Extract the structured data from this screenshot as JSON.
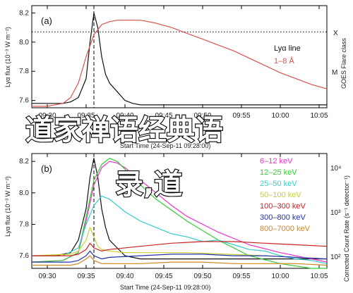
{
  "overlay": {
    "line1": "道家禅语经典语",
    "line2": "录,道"
  },
  "colors": {
    "lya": "#111111",
    "goes": "#d9534f",
    "dashed": "#000000"
  },
  "chart_data": [
    {
      "type": "line",
      "panel_label": "(a)",
      "xlabel": "Start Time (24-Sep-11 09:28:00)",
      "ylabel": "Lyα flux (10⁻³ W m⁻²)",
      "right_ylabel": "GOES Flare class",
      "x_ticks": [
        "09:30",
        "09:35",
        "09:40",
        "09:45",
        "09:50",
        "09:55",
        "10:00",
        "10:05"
      ],
      "x_range": [
        "09:28",
        "10:06"
      ],
      "ylim": [
        7.55,
        8.25
      ],
      "y_ticks": [
        7.6,
        7.8,
        8.0,
        8.2
      ],
      "right_ticks": [
        "X",
        "M"
      ],
      "dashed_vline": "09:36",
      "dotted_hline": 8.07,
      "legend": [
        "Lyα line",
        "1–8 Å"
      ],
      "series": [
        {
          "name": "Lyα line",
          "color": "#111111",
          "x": [
            0,
            2,
            4,
            5,
            6,
            7,
            7.5,
            8,
            8.5,
            9,
            9.5,
            10,
            11,
            12,
            13,
            14,
            16,
            20,
            25,
            30,
            38
          ],
          "y": [
            7.58,
            7.58,
            7.58,
            7.59,
            7.62,
            7.75,
            8.0,
            8.2,
            8.1,
            7.9,
            7.78,
            7.72,
            7.66,
            7.6,
            7.58,
            7.57,
            7.57,
            7.57,
            7.57,
            7.57,
            7.57
          ]
        },
        {
          "name": "1–8 Å",
          "color": "#d9534f",
          "x": [
            0,
            2,
            4,
            5,
            6,
            7,
            8,
            9,
            10,
            11,
            12,
            14,
            16,
            18,
            20,
            22,
            24,
            26,
            28,
            30,
            32,
            34,
            36,
            38
          ],
          "y": [
            7.56,
            7.56,
            7.58,
            7.62,
            7.72,
            7.9,
            8.05,
            8.12,
            8.14,
            8.15,
            8.15,
            8.15,
            8.13,
            8.1,
            8.06,
            8.02,
            7.98,
            7.94,
            7.89,
            7.84,
            7.79,
            7.75,
            7.71,
            7.68
          ]
        }
      ]
    },
    {
      "type": "line",
      "panel_label": "(b)",
      "xlabel": "Start Time (24-Sep-11 09:28:00)",
      "ylabel": "Lyα flux (10⁻³ W m⁻²)",
      "right_ylabel": "Corrected Count Rate (s⁻¹ detector⁻¹)",
      "x_ticks": [
        "09:30",
        "09:35",
        "09:40",
        "09:45",
        "09:50",
        "09:55",
        "10:00",
        "10:05"
      ],
      "x_range": [
        "09:28",
        "10:06"
      ],
      "ylim": [
        7.52,
        8.25
      ],
      "y_ticks": [
        7.6,
        7.8,
        8.0,
        8.2
      ],
      "right_ticks": [
        "10⁴",
        "10³",
        "10²"
      ],
      "dashed_vline": "09:36",
      "legend": [
        "6–12 keV",
        "12–25 keV",
        "25–50 keV",
        "50–100 keV",
        "100–300 keV",
        "300–800 keV",
        "800–7000 keV"
      ],
      "series": [
        {
          "name": "Lyα",
          "color": "#111111",
          "x": [
            0,
            3,
            5,
            6,
            7,
            7.5,
            8,
            8.5,
            9,
            9.5,
            10,
            11,
            12,
            14,
            20,
            30,
            38
          ],
          "y": [
            7.6,
            7.6,
            7.62,
            7.7,
            7.9,
            8.1,
            8.22,
            8.1,
            7.9,
            7.78,
            7.7,
            7.65,
            7.6,
            7.58,
            7.58,
            7.58,
            7.58
          ]
        },
        {
          "name": "6–12 keV",
          "color": "#ee33cc",
          "x": [
            0,
            4,
            6,
            7,
            8,
            9,
            10,
            11,
            12,
            14,
            16,
            18,
            20,
            24,
            28,
            32,
            36,
            38
          ],
          "y": [
            7.56,
            7.57,
            7.62,
            7.82,
            8.05,
            8.16,
            8.2,
            8.19,
            8.16,
            8.08,
            8.0,
            7.92,
            7.85,
            7.75,
            7.67,
            7.62,
            7.58,
            7.56
          ]
        },
        {
          "name": "12–25 keV",
          "color": "#33cc33",
          "x": [
            0,
            4,
            6,
            7,
            8,
            9,
            10,
            11,
            12,
            14,
            16,
            20,
            24,
            28,
            32,
            36,
            38
          ],
          "y": [
            7.56,
            7.57,
            7.62,
            7.85,
            8.08,
            8.18,
            8.22,
            8.2,
            8.15,
            8.05,
            7.96,
            7.82,
            7.7,
            7.6,
            7.55,
            7.52,
            7.5
          ]
        },
        {
          "name": "25–50 keV",
          "color": "#33cccc",
          "x": [
            0,
            4,
            6,
            7,
            8,
            9,
            10,
            11,
            12,
            14,
            16,
            18,
            20,
            22,
            24,
            26,
            28,
            30,
            32,
            34,
            36,
            38
          ],
          "y": [
            7.6,
            7.6,
            7.65,
            7.8,
            7.92,
            7.98,
            7.96,
            7.92,
            7.88,
            7.82,
            7.78,
            7.74,
            7.72,
            7.69,
            7.7,
            7.67,
            7.64,
            7.63,
            7.6,
            7.58,
            7.57,
            7.55
          ]
        },
        {
          "name": "50–100 keV",
          "color": "#cccc33",
          "x": [
            0,
            5,
            6,
            7,
            7.5,
            8,
            8.5,
            9,
            10,
            12,
            16,
            20,
            25,
            30,
            38
          ],
          "y": [
            7.6,
            7.61,
            7.63,
            7.7,
            7.78,
            7.72,
            7.66,
            7.64,
            7.63,
            7.62,
            7.62,
            7.62,
            7.61,
            7.6,
            7.58
          ]
        },
        {
          "name": "100–300 keV",
          "color": "#cc2222",
          "x": [
            0,
            5,
            6,
            7,
            7.5,
            8,
            9,
            10,
            14,
            18,
            22,
            26,
            30,
            34,
            38
          ],
          "y": [
            7.6,
            7.6,
            7.61,
            7.64,
            7.68,
            7.65,
            7.63,
            7.64,
            7.66,
            7.68,
            7.69,
            7.69,
            7.68,
            7.67,
            7.66
          ]
        },
        {
          "name": "300–800 keV",
          "color": "#2233aa",
          "x": [
            0,
            5,
            6,
            7,
            7.5,
            8,
            9,
            10,
            14,
            18,
            22,
            26,
            30,
            34,
            38
          ],
          "y": [
            7.56,
            7.56,
            7.57,
            7.6,
            7.63,
            7.6,
            7.58,
            7.59,
            7.6,
            7.61,
            7.61,
            7.6,
            7.6,
            7.59,
            7.58
          ]
        },
        {
          "name": "800–7000 keV",
          "color": "#cc8822",
          "x": [
            0,
            5,
            6,
            7,
            7.5,
            8,
            9,
            10,
            14,
            18,
            22,
            26,
            30,
            34,
            38
          ],
          "y": [
            7.54,
            7.54,
            7.55,
            7.58,
            7.6,
            7.57,
            7.55,
            7.55,
            7.55,
            7.56,
            7.56,
            7.55,
            7.55,
            7.55,
            7.54
          ]
        }
      ]
    }
  ]
}
